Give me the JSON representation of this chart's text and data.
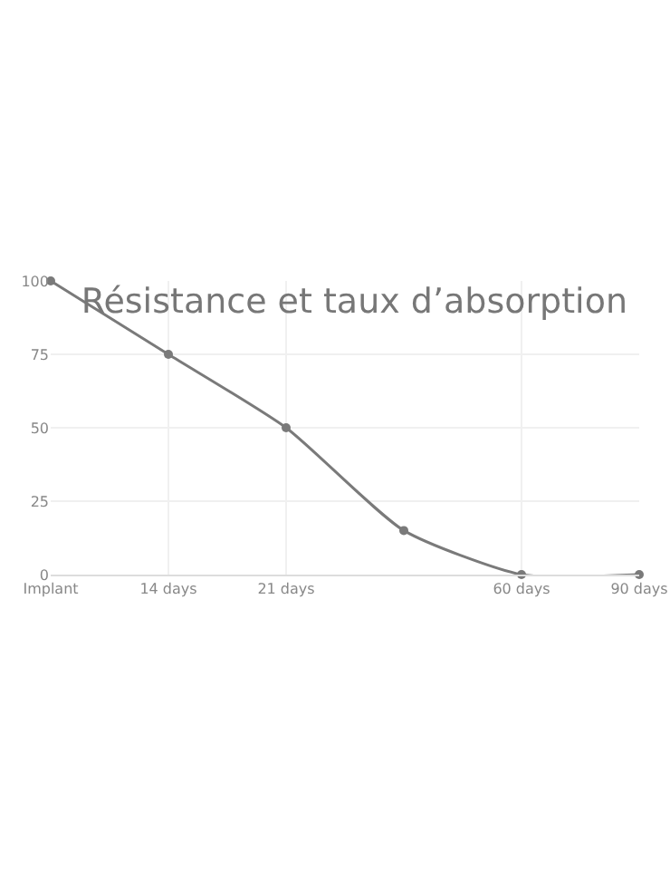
{
  "chart_data": {
    "type": "line",
    "title": "Résistance et taux d’absorption",
    "categories": [
      "Implant",
      "14 days",
      "21 days",
      null,
      "60 days",
      "90 days"
    ],
    "values": [
      100,
      75,
      50,
      15,
      0,
      0
    ],
    "color": "#7a7a7a",
    "ylim": [
      0,
      100
    ],
    "yticks": [
      0,
      25,
      50,
      75,
      100
    ],
    "grid": true,
    "marker": "circle",
    "line_style": "solid"
  }
}
